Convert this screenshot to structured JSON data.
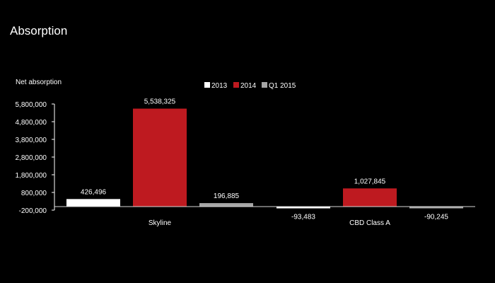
{
  "slide": {
    "title": "Absorption"
  },
  "chart_data": {
    "type": "bar",
    "ylabel": "Net absorption",
    "categories": [
      "Skyline",
      "CBD Class A"
    ],
    "series": [
      {
        "name": "2013",
        "color": "#ffffff",
        "values": [
          426496,
          -93483
        ],
        "labels": [
          "426,496",
          "-93,483"
        ]
      },
      {
        "name": "2014",
        "color": "#be1a20",
        "values": [
          5538325,
          1027845
        ],
        "labels": [
          "5,538,325",
          "1,027,845"
        ]
      },
      {
        "name": "Q1 2015",
        "color": "#a6a6a6",
        "values": [
          196885,
          -90245
        ],
        "labels": [
          "196,885",
          "-90,245"
        ]
      }
    ],
    "yticks": [
      {
        "value": 5800000,
        "label": "5,800,000"
      },
      {
        "value": 4800000,
        "label": "4,800,000"
      },
      {
        "value": 3800000,
        "label": "3,800,000"
      },
      {
        "value": 2800000,
        "label": "2,800,000"
      },
      {
        "value": 1800000,
        "label": "1,800,000"
      },
      {
        "value": 800000,
        "label": "800,000"
      },
      {
        "value": -200000,
        "label": "-200,000"
      }
    ],
    "ylim": [
      -200000,
      5800000
    ],
    "legend_position": "top-center",
    "grid": false
  }
}
